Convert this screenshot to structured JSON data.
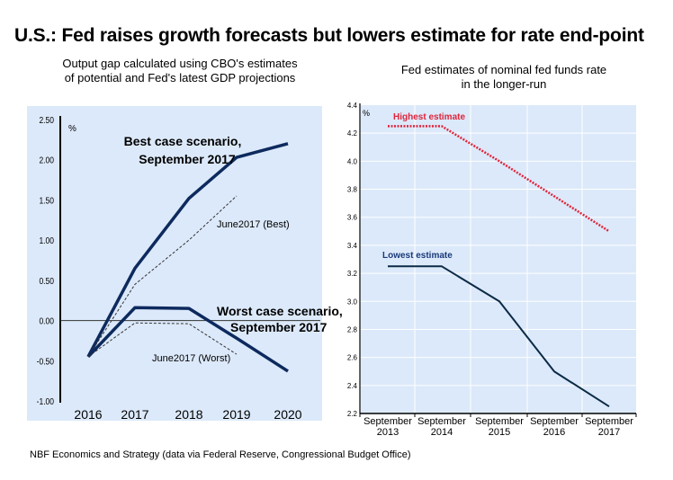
{
  "header": {
    "title": "U.S.: Fed raises growth forecasts but lowers estimate for rate end-point"
  },
  "source": "NBF Economics and Strategy (data via Federal Reserve, Congressional Budget Office)",
  "colors": {
    "panel_bg": "#dce9fa",
    "navy": "#0d2a5e",
    "dark_teal": "#0b2a45",
    "red": "#e0243a",
    "gridline": "#ffffff"
  },
  "chart_data": [
    {
      "type": "line",
      "title": "Output gap calculated using CBO's estimates of potential and Fed's latest GDP projections",
      "title_lines": [
        "Output gap calculated using CBO's estimates",
        "of potential and Fed's latest GDP projections"
      ],
      "ylabel": "%",
      "xlabel": "",
      "x": [
        "2016",
        "2017",
        "2018",
        "2019",
        "2020"
      ],
      "ylim": [
        -1.0,
        2.5
      ],
      "yticks": [
        "2.50",
        "2.00",
        "1.50",
        "1.00",
        "0.50",
        "0.00",
        "-0.50",
        "-1.00"
      ],
      "ytick_values": [
        2.5,
        2.0,
        1.5,
        1.0,
        0.5,
        0.0,
        -0.5,
        -1.0
      ],
      "grid": false,
      "zero_line": true,
      "series": [
        {
          "name": "Best case scenario, September 2017",
          "label_lines": [
            "Best case scenario,",
            "September 2017"
          ],
          "style": "solid-thick",
          "values": [
            -0.45,
            0.65,
            1.52,
            2.03,
            2.2
          ]
        },
        {
          "name": "June2017 (Best)",
          "label_lines": [
            "June2017 (Best)"
          ],
          "style": "dashed",
          "values": [
            -0.45,
            0.45,
            1.0,
            1.55,
            null
          ]
        },
        {
          "name": "Worst case scenario, September 2017",
          "label_lines": [
            "Worst case scenario,",
            "September 2017"
          ],
          "style": "solid-thick",
          "values": [
            -0.45,
            0.16,
            0.15,
            -0.22,
            -0.63
          ]
        },
        {
          "name": "June2017 (Worst)",
          "label_lines": [
            "June2017 (Worst)"
          ],
          "style": "dashed",
          "values": [
            -0.45,
            -0.03,
            -0.04,
            -0.42,
            null
          ]
        }
      ]
    },
    {
      "type": "line",
      "title": "Fed estimates of nominal fed funds rate in the longer-run",
      "title_lines": [
        "Fed estimates of nominal fed funds rate",
        "in the longer-run"
      ],
      "ylabel": "%",
      "xlabel": "",
      "x": [
        "September 2013",
        "September 2014",
        "September 2015",
        "September 2016",
        "September 2017"
      ],
      "x_lines": [
        [
          "September",
          "2013"
        ],
        [
          "September",
          "2014"
        ],
        [
          "September",
          "2015"
        ],
        [
          "September",
          "2016"
        ],
        [
          "September",
          "2017"
        ]
      ],
      "ylim": [
        2.2,
        4.4
      ],
      "yticks": [
        "4.4",
        "4.2",
        "4.0",
        "3.8",
        "3.6",
        "3.4",
        "3.2",
        "3.0",
        "2.8",
        "2.6",
        "2.4",
        "2.2"
      ],
      "ytick_values": [
        4.4,
        4.2,
        4.0,
        3.8,
        3.6,
        3.4,
        3.2,
        3.0,
        2.8,
        2.6,
        2.4,
        2.2
      ],
      "grid": true,
      "series": [
        {
          "name": "Highest estimate",
          "style": "dotted-red",
          "values": [
            4.25,
            4.25,
            4.0,
            3.75,
            3.5
          ]
        },
        {
          "name": "Lowest estimate",
          "style": "solid-dark",
          "values": [
            3.25,
            3.25,
            3.0,
            2.5,
            2.25
          ]
        }
      ]
    }
  ]
}
